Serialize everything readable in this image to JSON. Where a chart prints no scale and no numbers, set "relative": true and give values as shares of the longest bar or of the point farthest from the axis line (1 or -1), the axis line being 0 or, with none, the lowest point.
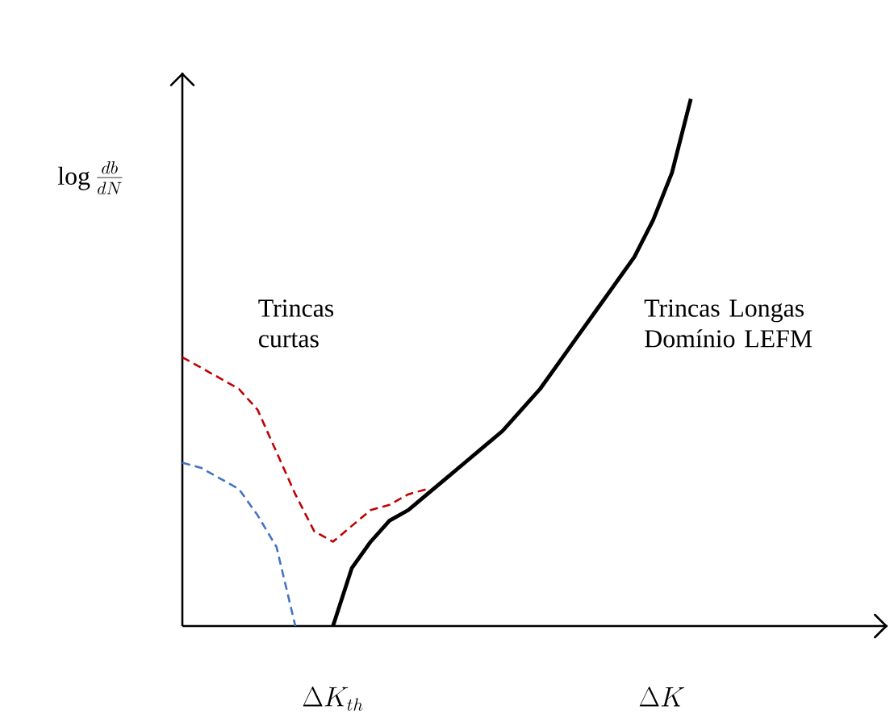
{
  "chart_data": {
    "type": "line",
    "relative": true,
    "xlabel": "\\Delta K",
    "ylabel": "\\log\\frac{db}{dN}",
    "annotations": [
      "Trincas curtas",
      "Trincas Longas Domínio LEFM",
      "\\Delta K_{th}"
    ],
    "categories": [
      null,
      null,
      null,
      null,
      null,
      null,
      null,
      null,
      null,
      null,
      null,
      null,
      null,
      null,
      null,
      null,
      null,
      null,
      null,
      null,
      null,
      null,
      null,
      null,
      null,
      null,
      null,
      null
    ],
    "series": [
      {
        "color": "#000000",
        "line_style": "solid",
        "values": [
          null,
          null,
          null,
          null,
          null,
          null,
          null,
          null,
          0,
          0.11,
          0.16,
          0.2,
          0.22,
          0.25,
          0.28,
          0.31,
          0.34,
          0.37,
          0.41,
          0.45,
          0.5,
          0.55,
          0.6,
          0.65,
          0.7,
          0.77,
          0.86,
          1
        ]
      },
      {
        "color": "#c00000",
        "line_style": "dashed",
        "values": [
          0.51,
          0.49,
          0.47,
          0.45,
          0.41,
          0.33,
          0.25,
          0.18,
          0.16,
          0.19,
          0.22,
          0.23,
          0.25,
          0.26,
          null,
          null,
          null,
          null,
          null,
          null,
          null,
          null,
          null,
          null,
          null,
          null,
          null,
          null
        ]
      },
      {
        "color": "#4472c4",
        "line_style": "dashed",
        "values": [
          0.31,
          0.3,
          0.28,
          0.26,
          0.21,
          0.15,
          0,
          null,
          null,
          null,
          null,
          null,
          null,
          null,
          null,
          null,
          null,
          null,
          null,
          null,
          null,
          null,
          null,
          null,
          null,
          null,
          null,
          null
        ]
      }
    ]
  }
}
